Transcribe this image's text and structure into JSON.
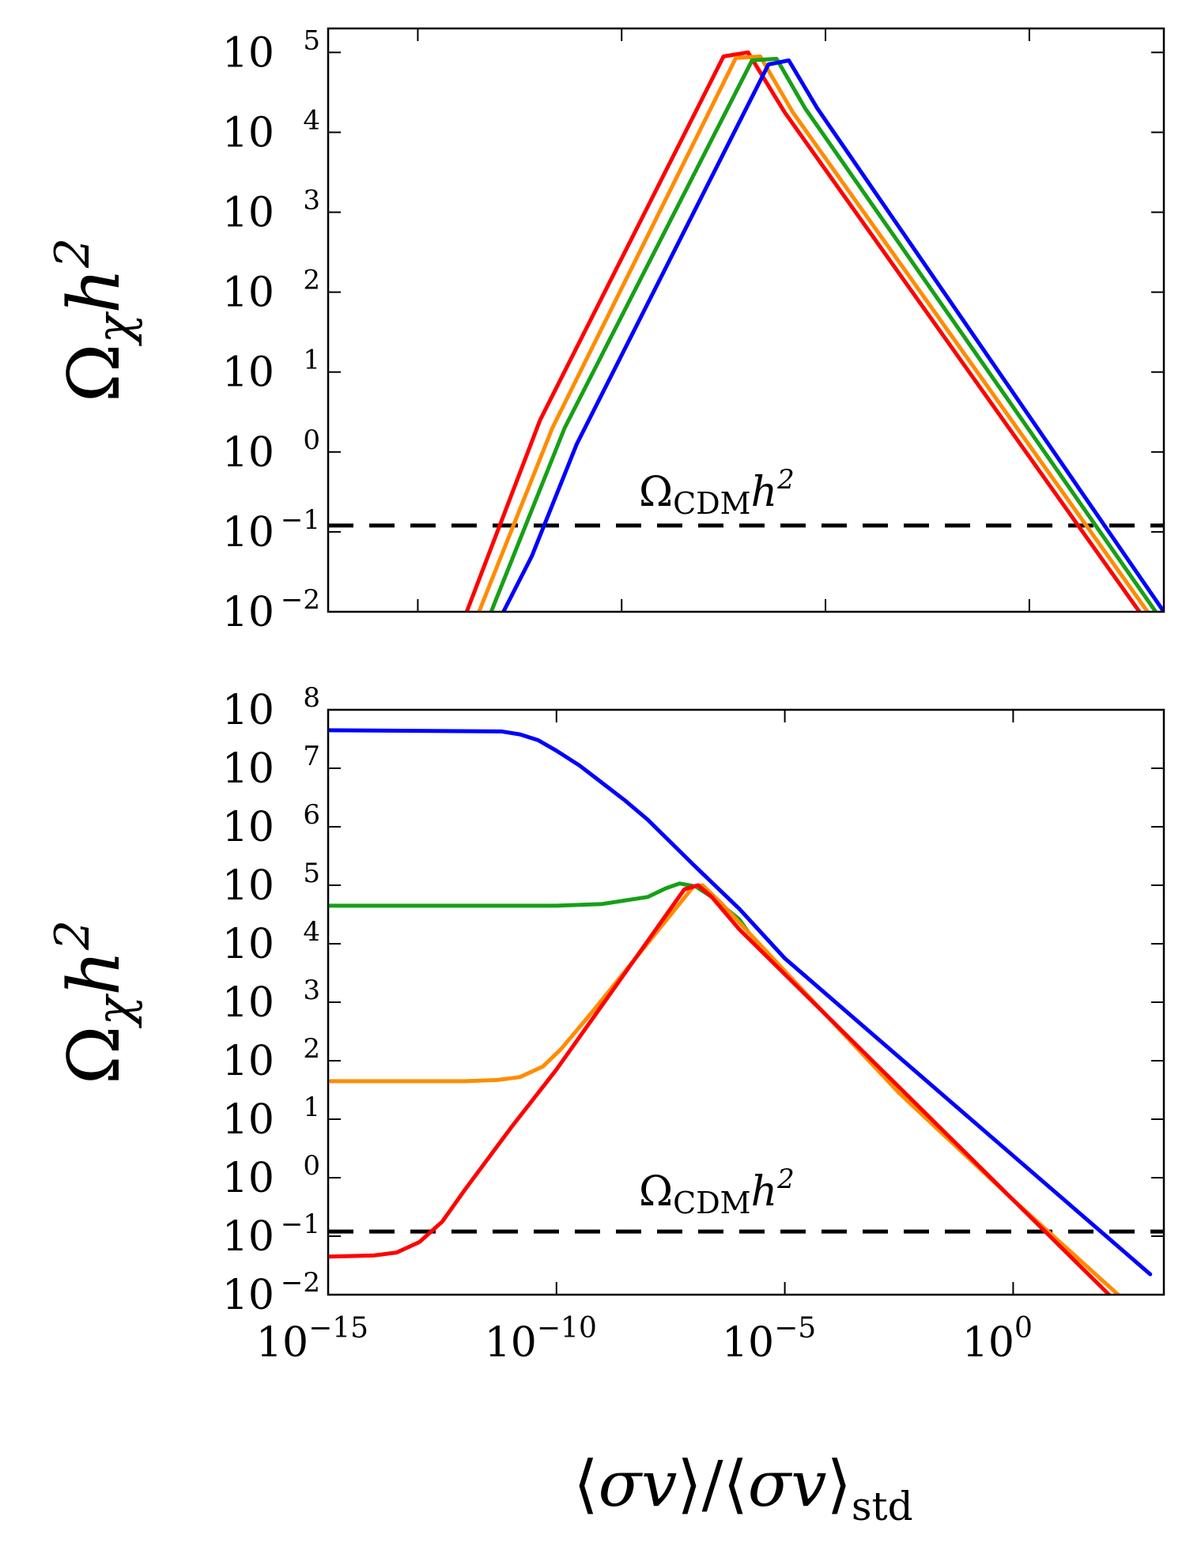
{
  "chart_data": [
    {
      "type": "line",
      "panel": "top",
      "ylabel": "Ωχh²",
      "xlabel": "",
      "xscale": "log",
      "yscale": "log",
      "xlim_exp": [
        -17.2,
        3.3
      ],
      "ylim_exp": [
        -2,
        5.3
      ],
      "yticks": [
        "10⁻²",
        "10⁻¹",
        "10⁰",
        "10¹",
        "10²",
        "10³",
        "10⁴",
        "10⁵"
      ],
      "show_x_ticklabels": false,
      "reference_line": {
        "label": "ΩCDMh²",
        "y": 0.12,
        "style": "dashed",
        "color": "#000000"
      },
      "series": [
        {
          "color": "#ff0000",
          "points": [
            [
              -13.8,
              -2
            ],
            [
              -12.9,
              -0.8
            ],
            [
              -12.0,
              0.4
            ],
            [
              -7.5,
              4.95
            ],
            [
              -6.9,
              5.0
            ],
            [
              -6.0,
              4.25
            ],
            [
              2.7,
              -2
            ]
          ]
        },
        {
          "color": "#ff8c00",
          "points": [
            [
              -13.5,
              -2
            ],
            [
              -12.6,
              -0.85
            ],
            [
              -11.7,
              0.3
            ],
            [
              -7.2,
              4.93
            ],
            [
              -6.6,
              4.95
            ],
            [
              -5.8,
              4.25
            ],
            [
              2.9,
              -2
            ]
          ]
        },
        {
          "color": "#16a016",
          "points": [
            [
              -13.2,
              -2
            ],
            [
              -12.3,
              -0.85
            ],
            [
              -11.4,
              0.3
            ],
            [
              -6.8,
              4.9
            ],
            [
              -6.2,
              4.92
            ],
            [
              -5.5,
              4.3
            ],
            [
              3.1,
              -2
            ]
          ]
        },
        {
          "color": "#0000ff",
          "points": [
            [
              -12.9,
              -2
            ],
            [
              -12.2,
              -1.3
            ],
            [
              -11.1,
              0.1
            ],
            [
              -6.4,
              4.85
            ],
            [
              -5.9,
              4.9
            ],
            [
              -5.2,
              4.3
            ],
            [
              3.3,
              -2
            ]
          ]
        }
      ]
    },
    {
      "type": "line",
      "panel": "bottom",
      "ylabel": "Ωχh²",
      "xlabel": "⟨σv⟩/⟨σv⟩std",
      "xscale": "log",
      "yscale": "log",
      "xlim_exp": [
        -15,
        3.3
      ],
      "ylim_exp": [
        -2,
        8
      ],
      "xticks": [
        "10⁻¹⁵",
        "10⁻¹⁰",
        "10⁻⁵",
        "10⁰"
      ],
      "yticks": [
        "10⁻²",
        "10⁻¹",
        "10⁰",
        "10¹",
        "10²",
        "10³",
        "10⁴",
        "10⁵",
        "10⁶",
        "10⁷",
        "10⁸"
      ],
      "reference_line": {
        "label": "ΩCDMh²",
        "y": 0.12,
        "style": "dashed",
        "color": "#000000"
      },
      "series": [
        {
          "color": "#0000ff",
          "points": [
            [
              -15,
              7.65
            ],
            [
              -11.2,
              7.63
            ],
            [
              -10.8,
              7.58
            ],
            [
              -10.4,
              7.48
            ],
            [
              -10.0,
              7.3
            ],
            [
              -9.5,
              7.05
            ],
            [
              -9.0,
              6.75
            ],
            [
              -8.5,
              6.45
            ],
            [
              -8.0,
              6.12
            ],
            [
              -7.0,
              5.35
            ],
            [
              -6.0,
              4.6
            ],
            [
              -5.0,
              3.75
            ],
            [
              3.0,
              -1.65
            ]
          ]
        },
        {
          "color": "#16a016",
          "points": [
            [
              -15,
              4.65
            ],
            [
              -10.0,
              4.65
            ],
            [
              -9.0,
              4.68
            ],
            [
              -8.0,
              4.8
            ],
            [
              -7.6,
              4.95
            ],
            [
              -7.3,
              5.03
            ],
            [
              -6.95,
              4.98
            ],
            [
              -6.6,
              4.8
            ],
            [
              -6.0,
              4.42
            ],
            [
              -5.8,
              4.2
            ]
          ]
        },
        {
          "color": "#ff8c00",
          "points": [
            [
              -15,
              1.65
            ],
            [
              -12.0,
              1.65
            ],
            [
              -11.3,
              1.67
            ],
            [
              -10.8,
              1.72
            ],
            [
              -10.3,
              1.9
            ],
            [
              -9.9,
              2.2
            ],
            [
              -9.2,
              2.85
            ],
            [
              -7.0,
              4.98
            ],
            [
              -6.8,
              5.0
            ],
            [
              -6.4,
              4.7
            ],
            [
              -2.5,
              1.45
            ],
            [
              0,
              -0.38
            ],
            [
              2.3,
              -2
            ]
          ]
        },
        {
          "color": "#ff0000",
          "points": [
            [
              -15,
              -1.35
            ],
            [
              -14.0,
              -1.33
            ],
            [
              -13.5,
              -1.28
            ],
            [
              -13.0,
              -1.1
            ],
            [
              -12.5,
              -0.75
            ],
            [
              -12.0,
              -0.2
            ],
            [
              -11.0,
              0.85
            ],
            [
              -10.0,
              1.85
            ],
            [
              -9.0,
              2.95
            ],
            [
              -7.2,
              4.93
            ],
            [
              -6.9,
              5.0
            ],
            [
              -6.6,
              4.8
            ],
            [
              -6.0,
              4.25
            ],
            [
              2.1,
              -2
            ]
          ]
        }
      ]
    }
  ]
}
